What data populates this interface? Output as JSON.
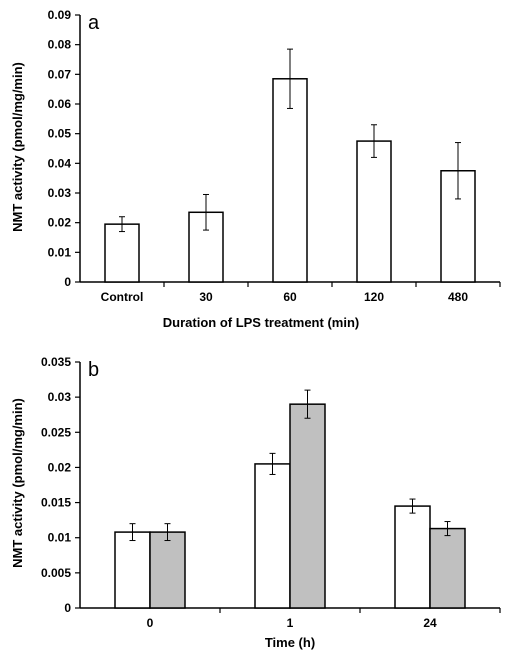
{
  "chart_data": [
    {
      "type": "bar",
      "panel_label": "a",
      "categories": [
        "Control",
        "30",
        "60",
        "120",
        "480"
      ],
      "series": [
        {
          "values": [
            0.0195,
            0.0235,
            0.0685,
            0.0475,
            0.0375
          ],
          "errors": [
            0.0025,
            0.006,
            0.01,
            0.0055,
            0.0095
          ],
          "color": "#ffffff"
        }
      ],
      "xlabel": "Duration of LPS treatment (min)",
      "ylabel": "NMT activity (pmol/mg/min)",
      "ylim": [
        0,
        0.09
      ],
      "yticks": [
        "0",
        "0.01",
        "0.02",
        "0.03",
        "0.04",
        "0.05",
        "0.06",
        "0.07",
        "0.08",
        "0.09"
      ],
      "grid": false,
      "legend": "none"
    },
    {
      "type": "bar",
      "panel_label": "b",
      "categories": [
        "0",
        "1",
        "24"
      ],
      "series": [
        {
          "values": [
            0.0108,
            0.0205,
            0.0145
          ],
          "errors": [
            0.0012,
            0.0015,
            0.001
          ],
          "color": "#ffffff"
        },
        {
          "values": [
            0.0108,
            0.029,
            0.0113
          ],
          "errors": [
            0.0012,
            0.002,
            0.001
          ],
          "color": "#c0c0c0"
        }
      ],
      "xlabel": "Time (h)",
      "ylabel": "NMT activity (pmol/mg/min)",
      "ylim": [
        0,
        0.035
      ],
      "yticks": [
        "0",
        "0.005",
        "0.01",
        "0.015",
        "0.02",
        "0.025",
        "0.03",
        "0.035"
      ],
      "grid": false,
      "legend": "none"
    }
  ]
}
